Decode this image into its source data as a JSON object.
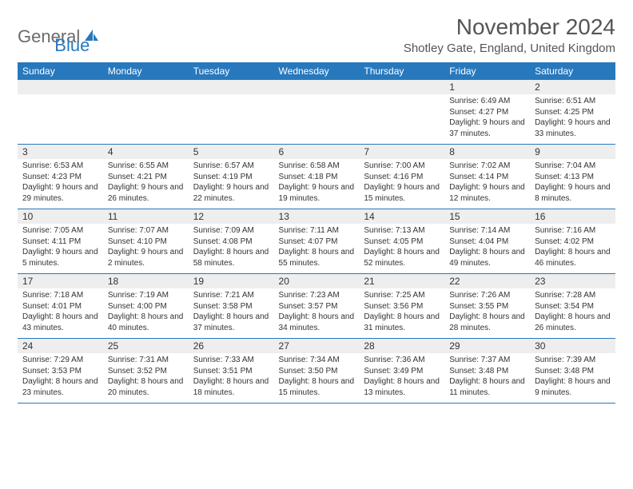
{
  "logo": {
    "text1": "General",
    "text2": "Blue"
  },
  "title": "November 2024",
  "location": "Shotley Gate, England, United Kingdom",
  "colors": {
    "header_bg": "#2878bd",
    "header_fg": "#ffffff",
    "daynum_bg": "#eeeeee",
    "border": "#2878bd",
    "text": "#333333",
    "logo_gray": "#6b6b6b",
    "logo_blue": "#2878bd"
  },
  "weekdays": [
    "Sunday",
    "Monday",
    "Tuesday",
    "Wednesday",
    "Thursday",
    "Friday",
    "Saturday"
  ],
  "weeks": [
    [
      {
        "n": "",
        "sr": "",
        "ss": "",
        "dl": ""
      },
      {
        "n": "",
        "sr": "",
        "ss": "",
        "dl": ""
      },
      {
        "n": "",
        "sr": "",
        "ss": "",
        "dl": ""
      },
      {
        "n": "",
        "sr": "",
        "ss": "",
        "dl": ""
      },
      {
        "n": "",
        "sr": "",
        "ss": "",
        "dl": ""
      },
      {
        "n": "1",
        "sr": "Sunrise: 6:49 AM",
        "ss": "Sunset: 4:27 PM",
        "dl": "Daylight: 9 hours and 37 minutes."
      },
      {
        "n": "2",
        "sr": "Sunrise: 6:51 AM",
        "ss": "Sunset: 4:25 PM",
        "dl": "Daylight: 9 hours and 33 minutes."
      }
    ],
    [
      {
        "n": "3",
        "sr": "Sunrise: 6:53 AM",
        "ss": "Sunset: 4:23 PM",
        "dl": "Daylight: 9 hours and 29 minutes."
      },
      {
        "n": "4",
        "sr": "Sunrise: 6:55 AM",
        "ss": "Sunset: 4:21 PM",
        "dl": "Daylight: 9 hours and 26 minutes."
      },
      {
        "n": "5",
        "sr": "Sunrise: 6:57 AM",
        "ss": "Sunset: 4:19 PM",
        "dl": "Daylight: 9 hours and 22 minutes."
      },
      {
        "n": "6",
        "sr": "Sunrise: 6:58 AM",
        "ss": "Sunset: 4:18 PM",
        "dl": "Daylight: 9 hours and 19 minutes."
      },
      {
        "n": "7",
        "sr": "Sunrise: 7:00 AM",
        "ss": "Sunset: 4:16 PM",
        "dl": "Daylight: 9 hours and 15 minutes."
      },
      {
        "n": "8",
        "sr": "Sunrise: 7:02 AM",
        "ss": "Sunset: 4:14 PM",
        "dl": "Daylight: 9 hours and 12 minutes."
      },
      {
        "n": "9",
        "sr": "Sunrise: 7:04 AM",
        "ss": "Sunset: 4:13 PM",
        "dl": "Daylight: 9 hours and 8 minutes."
      }
    ],
    [
      {
        "n": "10",
        "sr": "Sunrise: 7:05 AM",
        "ss": "Sunset: 4:11 PM",
        "dl": "Daylight: 9 hours and 5 minutes."
      },
      {
        "n": "11",
        "sr": "Sunrise: 7:07 AM",
        "ss": "Sunset: 4:10 PM",
        "dl": "Daylight: 9 hours and 2 minutes."
      },
      {
        "n": "12",
        "sr": "Sunrise: 7:09 AM",
        "ss": "Sunset: 4:08 PM",
        "dl": "Daylight: 8 hours and 58 minutes."
      },
      {
        "n": "13",
        "sr": "Sunrise: 7:11 AM",
        "ss": "Sunset: 4:07 PM",
        "dl": "Daylight: 8 hours and 55 minutes."
      },
      {
        "n": "14",
        "sr": "Sunrise: 7:13 AM",
        "ss": "Sunset: 4:05 PM",
        "dl": "Daylight: 8 hours and 52 minutes."
      },
      {
        "n": "15",
        "sr": "Sunrise: 7:14 AM",
        "ss": "Sunset: 4:04 PM",
        "dl": "Daylight: 8 hours and 49 minutes."
      },
      {
        "n": "16",
        "sr": "Sunrise: 7:16 AM",
        "ss": "Sunset: 4:02 PM",
        "dl": "Daylight: 8 hours and 46 minutes."
      }
    ],
    [
      {
        "n": "17",
        "sr": "Sunrise: 7:18 AM",
        "ss": "Sunset: 4:01 PM",
        "dl": "Daylight: 8 hours and 43 minutes."
      },
      {
        "n": "18",
        "sr": "Sunrise: 7:19 AM",
        "ss": "Sunset: 4:00 PM",
        "dl": "Daylight: 8 hours and 40 minutes."
      },
      {
        "n": "19",
        "sr": "Sunrise: 7:21 AM",
        "ss": "Sunset: 3:58 PM",
        "dl": "Daylight: 8 hours and 37 minutes."
      },
      {
        "n": "20",
        "sr": "Sunrise: 7:23 AM",
        "ss": "Sunset: 3:57 PM",
        "dl": "Daylight: 8 hours and 34 minutes."
      },
      {
        "n": "21",
        "sr": "Sunrise: 7:25 AM",
        "ss": "Sunset: 3:56 PM",
        "dl": "Daylight: 8 hours and 31 minutes."
      },
      {
        "n": "22",
        "sr": "Sunrise: 7:26 AM",
        "ss": "Sunset: 3:55 PM",
        "dl": "Daylight: 8 hours and 28 minutes."
      },
      {
        "n": "23",
        "sr": "Sunrise: 7:28 AM",
        "ss": "Sunset: 3:54 PM",
        "dl": "Daylight: 8 hours and 26 minutes."
      }
    ],
    [
      {
        "n": "24",
        "sr": "Sunrise: 7:29 AM",
        "ss": "Sunset: 3:53 PM",
        "dl": "Daylight: 8 hours and 23 minutes."
      },
      {
        "n": "25",
        "sr": "Sunrise: 7:31 AM",
        "ss": "Sunset: 3:52 PM",
        "dl": "Daylight: 8 hours and 20 minutes."
      },
      {
        "n": "26",
        "sr": "Sunrise: 7:33 AM",
        "ss": "Sunset: 3:51 PM",
        "dl": "Daylight: 8 hours and 18 minutes."
      },
      {
        "n": "27",
        "sr": "Sunrise: 7:34 AM",
        "ss": "Sunset: 3:50 PM",
        "dl": "Daylight: 8 hours and 15 minutes."
      },
      {
        "n": "28",
        "sr": "Sunrise: 7:36 AM",
        "ss": "Sunset: 3:49 PM",
        "dl": "Daylight: 8 hours and 13 minutes."
      },
      {
        "n": "29",
        "sr": "Sunrise: 7:37 AM",
        "ss": "Sunset: 3:48 PM",
        "dl": "Daylight: 8 hours and 11 minutes."
      },
      {
        "n": "30",
        "sr": "Sunrise: 7:39 AM",
        "ss": "Sunset: 3:48 PM",
        "dl": "Daylight: 8 hours and 9 minutes."
      }
    ]
  ]
}
